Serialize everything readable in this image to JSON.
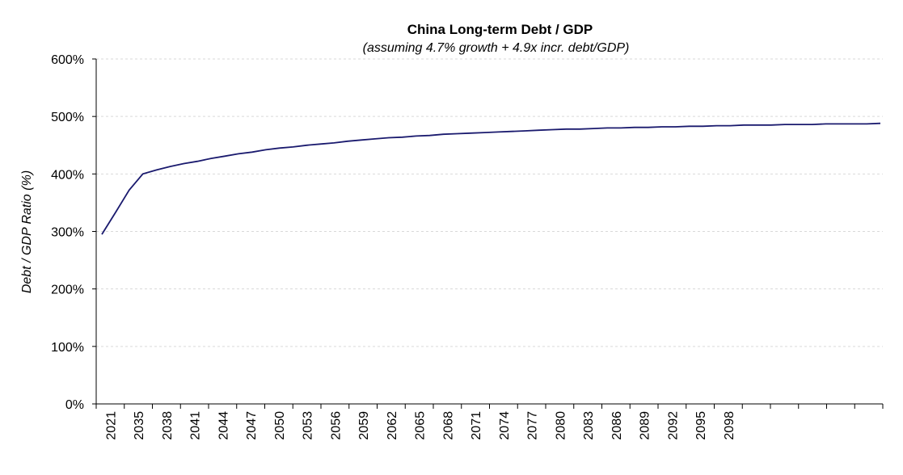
{
  "chart_data": {
    "type": "line",
    "title": "China Long-term Debt / GDP",
    "subtitle": "(assuming 4.7% growth + 4.9x incr. debt/GDP)",
    "ylabel": "Debt / GDP Ratio (%)",
    "xlabel": "",
    "ylim": [
      0,
      600
    ],
    "y_ticks": [
      "0%",
      "100%",
      "200%",
      "300%",
      "400%",
      "500%",
      "600%"
    ],
    "x_ticks": [
      "2021",
      "2035",
      "2038",
      "2041",
      "2044",
      "2047",
      "2050",
      "2053",
      "2056",
      "2059",
      "2062",
      "2065",
      "2068",
      "2071",
      "2074",
      "2077",
      "2080",
      "2083",
      "2086",
      "2089",
      "2092",
      "2095",
      "2098"
    ],
    "grid": "horizontal dashed",
    "line_color": "#1a1a6e",
    "series": [
      {
        "values": [
          295,
          333,
          372,
          400,
          407,
          413,
          418,
          422,
          427,
          431,
          435,
          438,
          442,
          445,
          447,
          450,
          452,
          454,
          457,
          459,
          461,
          463,
          464,
          466,
          467,
          469,
          470,
          471,
          472,
          473,
          474,
          475,
          476,
          477,
          478,
          478,
          479,
          480,
          480,
          481,
          481,
          482,
          482,
          483,
          483,
          484,
          484,
          485,
          485,
          485,
          486,
          486,
          486,
          487,
          487,
          487,
          487,
          488
        ]
      }
    ]
  }
}
